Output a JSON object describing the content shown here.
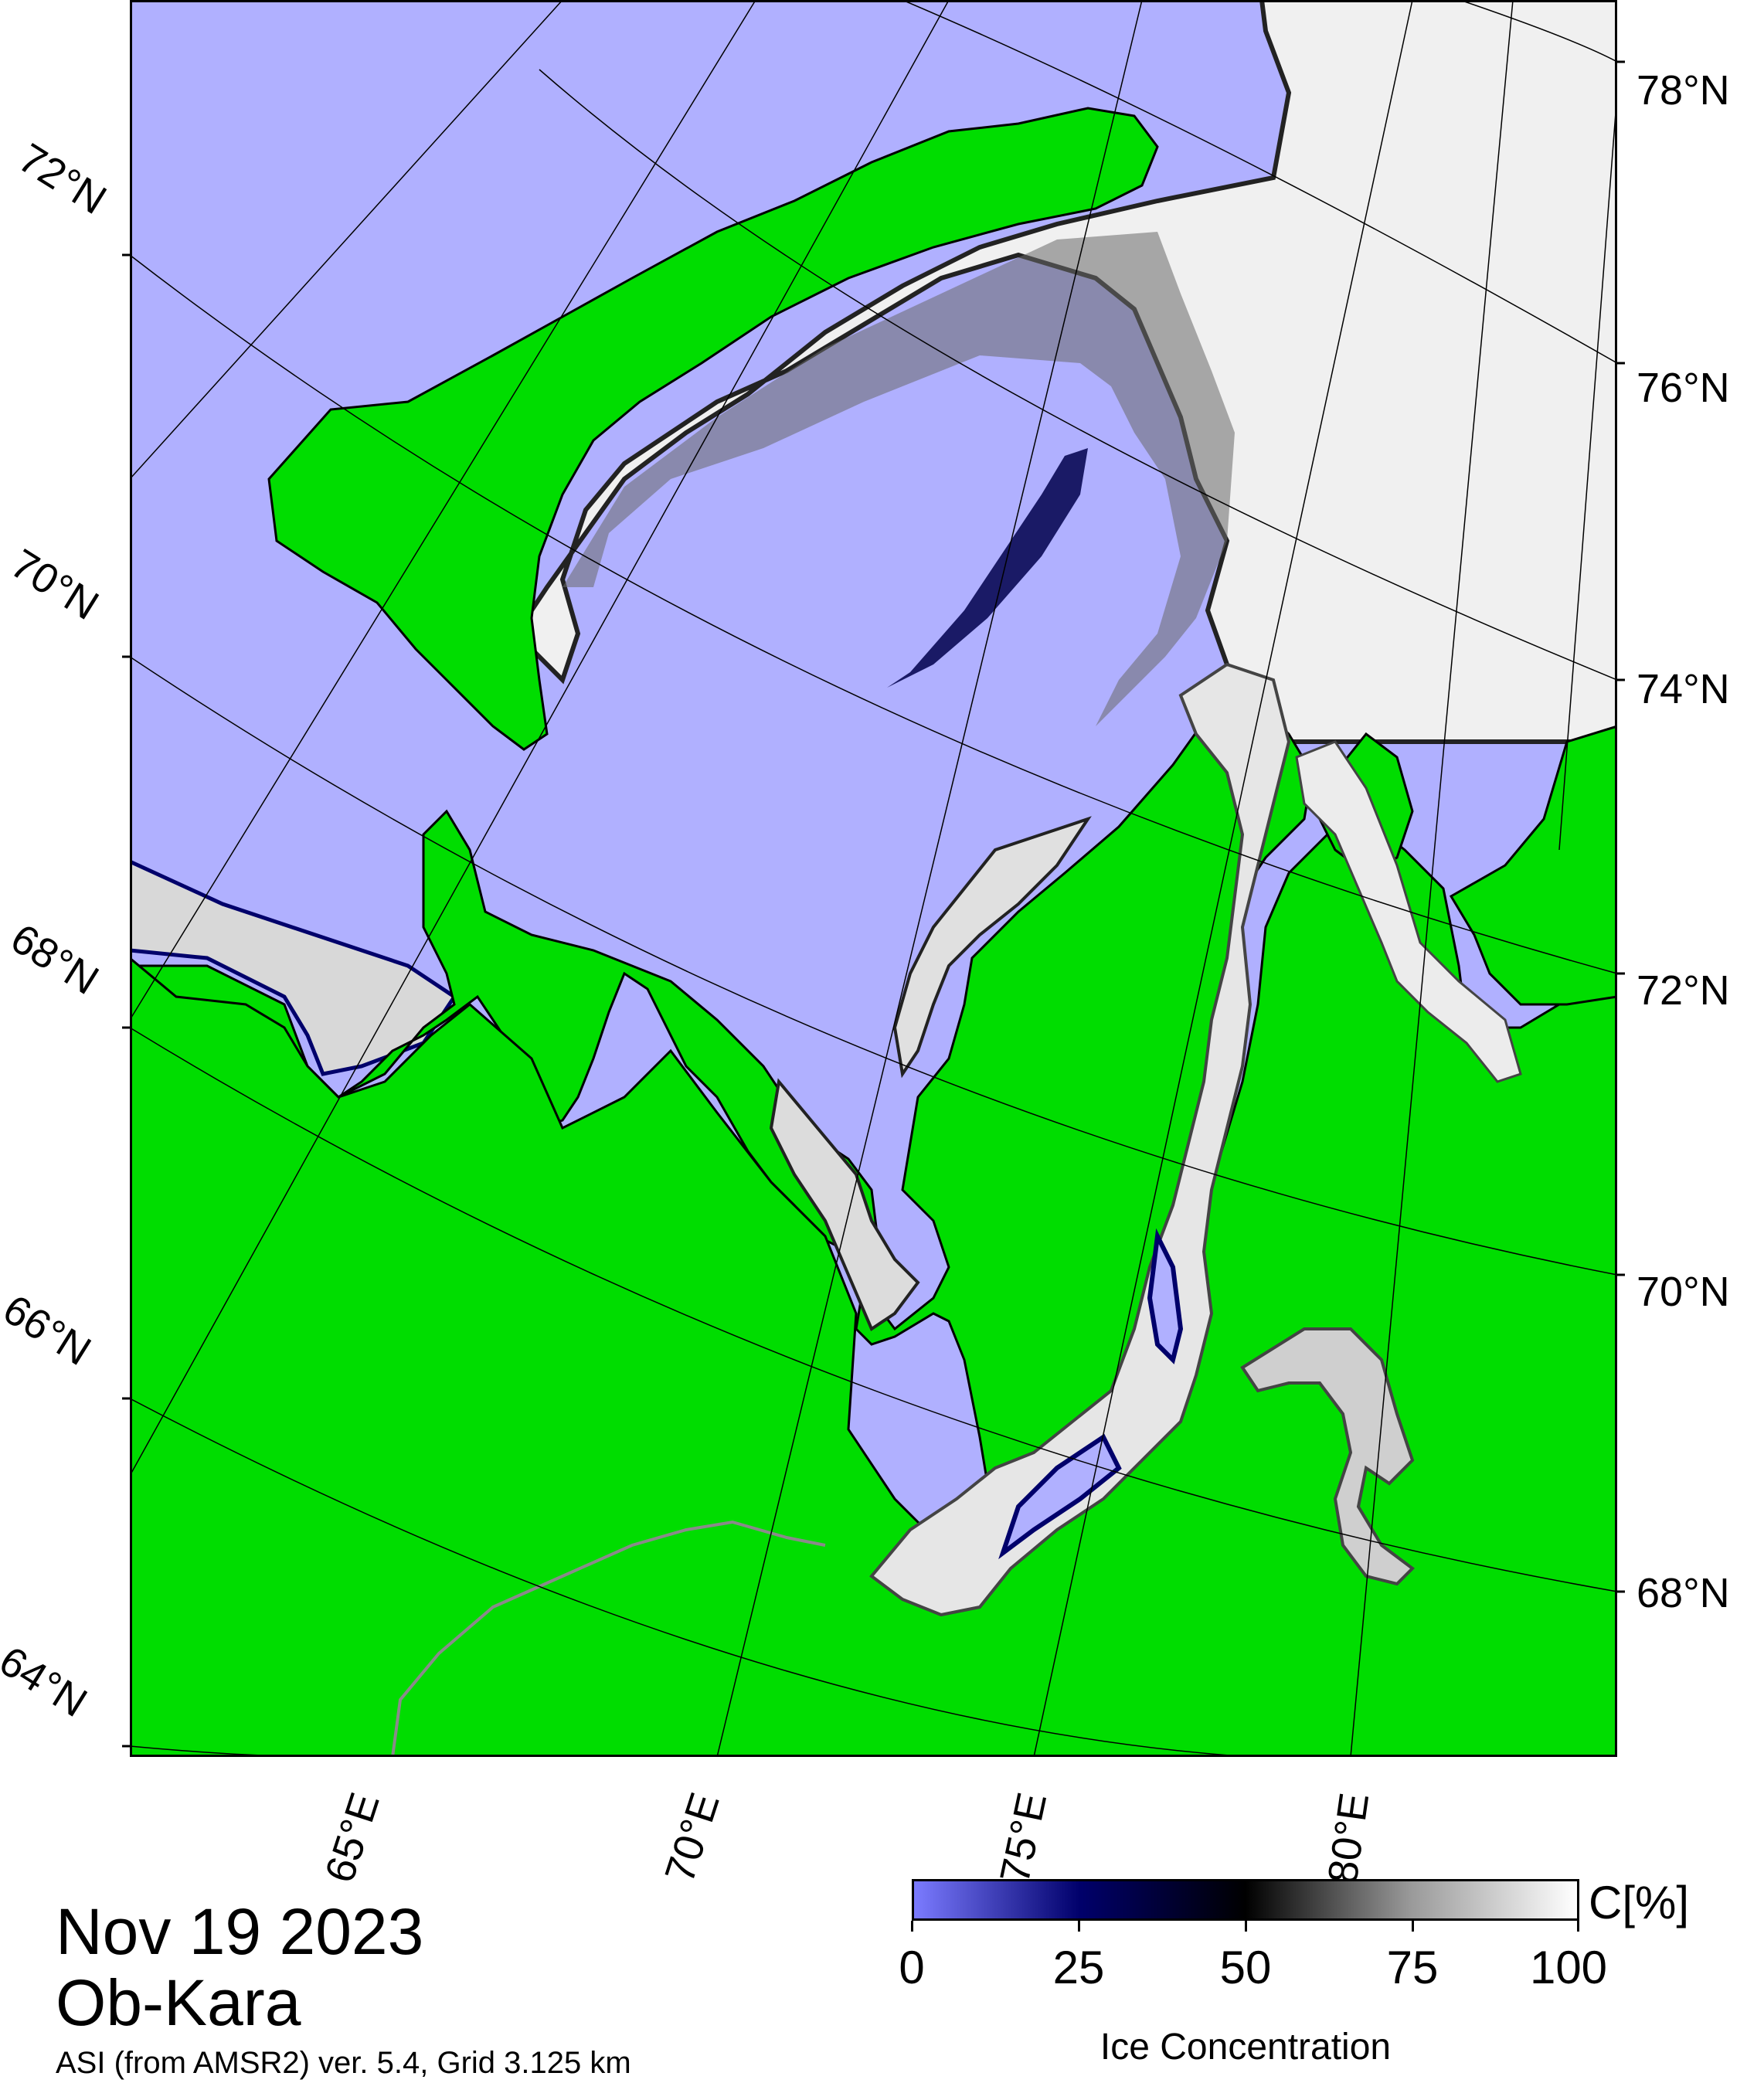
{
  "map": {
    "lat_labels_left": [
      "72°N",
      "70°N",
      "68°N",
      "66°N",
      "64°N"
    ],
    "lat_labels_right": [
      "78°N",
      "76°N",
      "74°N",
      "72°N",
      "70°N",
      "68°N"
    ],
    "lon_labels_bottom": [
      "65°E",
      "70°E",
      "75°E",
      "80°E"
    ]
  },
  "caption": {
    "date": "Nov 19 2023",
    "region": "Ob-Kara",
    "product": "ASI (from AMSR2) ver. 5.4,  Grid 3.125 km"
  },
  "colorbar": {
    "ticks": [
      "0",
      "25",
      "50",
      "75",
      "100"
    ],
    "unit": "C[%]",
    "title": "Ice Concentration",
    "gradient_stops": [
      "#7b7bff",
      "#00006b",
      "#000000",
      "#9a9a9a",
      "#ffffff"
    ]
  },
  "colors": {
    "land": "#00dd00",
    "open_water": "#b0b0ff",
    "coastline": "#000000"
  }
}
